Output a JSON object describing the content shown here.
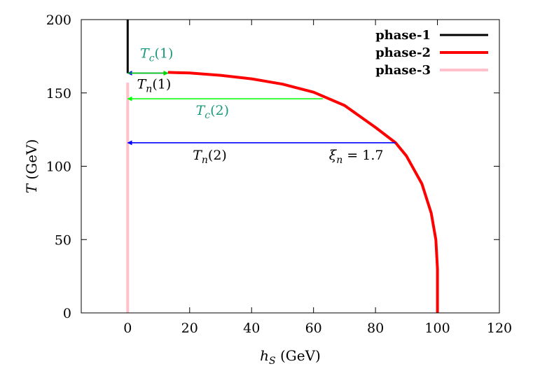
{
  "chart_data": {
    "type": "line",
    "xlabel": "h_S (GeV)",
    "ylabel": "T (GeV)",
    "xlim": [
      -15,
      120
    ],
    "ylim": [
      0,
      200
    ],
    "xticks": [
      0,
      20,
      40,
      60,
      80,
      100,
      120
    ],
    "yticks": [
      0,
      50,
      100,
      150,
      200
    ],
    "grid": false,
    "legend_position": "top-right",
    "series": [
      {
        "name": "phase-1",
        "color": "#000000",
        "points": [
          [
            0,
            163.5
          ],
          [
            0,
            200
          ]
        ]
      },
      {
        "name": "phase-2",
        "color": "#ff0000",
        "points": [
          [
            13,
            164
          ],
          [
            20,
            163.6
          ],
          [
            30,
            162
          ],
          [
            40,
            159.6
          ],
          [
            50,
            156
          ],
          [
            60,
            150.5
          ],
          [
            70,
            141.5
          ],
          [
            80,
            126.5
          ],
          [
            86.5,
            116
          ],
          [
            90,
            107
          ],
          [
            95,
            88
          ],
          [
            98,
            68
          ],
          [
            99.5,
            50
          ],
          [
            100,
            30
          ],
          [
            100,
            0
          ]
        ]
      },
      {
        "name": "phase-3",
        "color": "#ffc0cb",
        "points": [
          [
            0,
            0
          ],
          [
            0,
            157
          ]
        ]
      }
    ],
    "arrows": [
      {
        "name": "Tc1",
        "color": "#0000ff",
        "from": [
          13,
          163.5
        ],
        "to": [
          0,
          163.5
        ]
      },
      {
        "name": "Tn1",
        "color": "#00d000",
        "from": [
          0,
          163.5
        ],
        "to": [
          13,
          163.5
        ]
      },
      {
        "name": "Tc2",
        "color": "#00ff00",
        "from": [
          63,
          146
        ],
        "to": [
          0,
          146
        ]
      },
      {
        "name": "Tn2",
        "color": "#0000ff",
        "from": [
          86.5,
          116
        ],
        "to": [
          0,
          116
        ]
      }
    ],
    "annotations": [
      {
        "id": "tc1",
        "base": "T",
        "sub": "c",
        "arg": "(1)",
        "x": 4,
        "y": 174,
        "color": "#1a9a7a"
      },
      {
        "id": "tn1",
        "base": "T",
        "sub": "n",
        "arg": "(1)",
        "x": 3,
        "y": 153,
        "color": "#000000"
      },
      {
        "id": "tc2",
        "base": "T",
        "sub": "c",
        "arg": "(2)",
        "x": 22,
        "y": 135,
        "color": "#1a9a7a"
      },
      {
        "id": "tn2",
        "base": "T",
        "sub": "n",
        "arg": "(2)",
        "x": 21,
        "y": 104.5,
        "color": "#000000"
      },
      {
        "id": "xi",
        "base": "ξ",
        "sub": "n",
        "arg": " = 1.7",
        "x": 65,
        "y": 104.5,
        "color": "#000000"
      }
    ]
  }
}
